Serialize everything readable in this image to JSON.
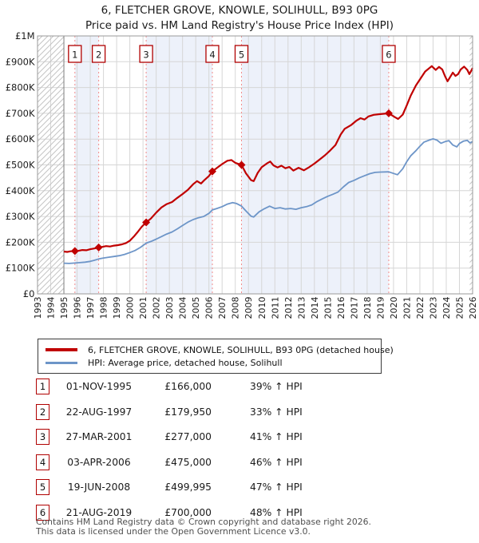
{
  "title": {
    "line1": "6, FLETCHER GROVE, KNOWLE, SOLIHULL, B93 0PG",
    "line2": "Price paid vs. HM Land Registry's House Price Index (HPI)"
  },
  "legend": [
    {
      "label": "6, FLETCHER GROVE, KNOWLE, SOLIHULL, B93 0PG (detached house)",
      "color": "#c00000"
    },
    {
      "label": "HPI: Average price, detached house, Solihull",
      "color": "#6d95c8"
    }
  ],
  "footer": {
    "line1": "Contains HM Land Registry data © Crown copyright and database right 2026.",
    "line2": "This data is licensed under the Open Government Licence v3.0."
  },
  "chart_data": {
    "type": "line",
    "x_range": [
      1993,
      2026
    ],
    "y_range": [
      0,
      1000000
    ],
    "grid": true,
    "x_ticks": [
      1993,
      1994,
      1995,
      1996,
      1997,
      1998,
      1999,
      2000,
      2001,
      2002,
      2003,
      2004,
      2005,
      2006,
      2007,
      2008,
      2009,
      2010,
      2011,
      2012,
      2013,
      2014,
      2015,
      2016,
      2017,
      2018,
      2019,
      2020,
      2021,
      2022,
      2023,
      2024,
      2025,
      2026
    ],
    "y_ticks": [
      {
        "label": "£1M",
        "value": 1000000
      },
      {
        "label": "£900K",
        "value": 900000
      },
      {
        "label": "£800K",
        "value": 800000
      },
      {
        "label": "£700K",
        "value": 700000
      },
      {
        "label": "£600K",
        "value": 600000
      },
      {
        "label": "£500K",
        "value": 500000
      },
      {
        "label": "£400K",
        "value": 400000
      },
      {
        "label": "£300K",
        "value": 300000
      },
      {
        "label": "£200K",
        "value": 200000
      },
      {
        "label": "£100K",
        "value": 100000
      },
      {
        "label": "£0",
        "value": 0
      }
    ],
    "hatch_before_year": 1995.0,
    "hatch_after_year": 2025.78,
    "shaded_sale_pairs": [
      [
        1,
        2
      ],
      [
        3,
        4
      ],
      [
        5,
        6
      ]
    ],
    "colors": {
      "price_line": "#c00000",
      "hpi_line": "#6d95c8",
      "sale_dash": "#f28b8b",
      "band": "#edf1fa",
      "grid": "#d6d6d6",
      "border": "#9a9a9a",
      "hatch": "#c4c4c4",
      "flag_border": "#b00000"
    },
    "sales": [
      {
        "num": 1,
        "date": "01-NOV-1995",
        "year": 1995.835,
        "price": 166000,
        "price_label": "£166,000",
        "vs_hpi": "39% ↑ HPI"
      },
      {
        "num": 2,
        "date": "22-AUG-1997",
        "year": 1997.64,
        "price": 179950,
        "price_label": "£179,950",
        "vs_hpi": "33% ↑ HPI"
      },
      {
        "num": 3,
        "date": "27-MAR-2001",
        "year": 2001.24,
        "price": 277000,
        "price_label": "£277,000",
        "vs_hpi": "41% ↑ HPI"
      },
      {
        "num": 4,
        "date": "03-APR-2006",
        "year": 2006.26,
        "price": 475000,
        "price_label": "£475,000",
        "vs_hpi": "46% ↑ HPI"
      },
      {
        "num": 5,
        "date": "19-JUN-2008",
        "year": 2008.47,
        "price": 499995,
        "price_label": "£499,995",
        "vs_hpi": "47% ↑ HPI"
      },
      {
        "num": 6,
        "date": "21-AUG-2019",
        "year": 2019.64,
        "price": 700000,
        "price_label": "£700,000",
        "vs_hpi": "48% ↑ HPI"
      }
    ],
    "series": [
      {
        "name": "6, FLETCHER GROVE, KNOWLE, SOLIHULL, B93 0PG (detached house)",
        "color": "#c00000",
        "points": [
          [
            1995.0,
            164000
          ],
          [
            1995.25,
            162500
          ],
          [
            1995.5,
            165000
          ],
          [
            1995.835,
            166000
          ],
          [
            1996.1,
            167000
          ],
          [
            1996.4,
            170000
          ],
          [
            1996.7,
            169000
          ],
          [
            1997.0,
            173000
          ],
          [
            1997.3,
            176000
          ],
          [
            1997.64,
            180000
          ],
          [
            1997.9,
            182000
          ],
          [
            1998.2,
            185000
          ],
          [
            1998.5,
            183500
          ],
          [
            1998.8,
            187000
          ],
          [
            1999.1,
            189000
          ],
          [
            1999.4,
            192000
          ],
          [
            1999.7,
            197000
          ],
          [
            2000.0,
            206000
          ],
          [
            2000.3,
            222000
          ],
          [
            2000.6,
            240000
          ],
          [
            2000.9,
            260000
          ],
          [
            2001.24,
            277000
          ],
          [
            2001.6,
            292000
          ],
          [
            2002.0,
            315000
          ],
          [
            2002.4,
            335000
          ],
          [
            2002.8,
            348000
          ],
          [
            2003.2,
            356000
          ],
          [
            2003.6,
            372000
          ],
          [
            2004.0,
            387000
          ],
          [
            2004.4,
            403000
          ],
          [
            2004.8,
            425000
          ],
          [
            2005.1,
            437000
          ],
          [
            2005.4,
            428000
          ],
          [
            2005.7,
            443000
          ],
          [
            2006.0,
            457000
          ],
          [
            2006.26,
            475000
          ],
          [
            2006.6,
            488000
          ],
          [
            2007.0,
            503000
          ],
          [
            2007.4,
            516000
          ],
          [
            2007.7,
            519000
          ],
          [
            2008.0,
            508000
          ],
          [
            2008.47,
            499995
          ],
          [
            2008.8,
            468000
          ],
          [
            2009.2,
            441000
          ],
          [
            2009.4,
            437000
          ],
          [
            2009.7,
            469000
          ],
          [
            2010.0,
            491000
          ],
          [
            2010.4,
            506000
          ],
          [
            2010.65,
            513000
          ],
          [
            2010.9,
            498000
          ],
          [
            2011.2,
            490000
          ],
          [
            2011.5,
            497000
          ],
          [
            2011.8,
            487000
          ],
          [
            2012.1,
            492000
          ],
          [
            2012.4,
            478000
          ],
          [
            2012.8,
            489000
          ],
          [
            2013.2,
            479000
          ],
          [
            2013.6,
            491000
          ],
          [
            2014.0,
            505000
          ],
          [
            2014.4,
            521000
          ],
          [
            2014.8,
            537000
          ],
          [
            2015.2,
            556000
          ],
          [
            2015.6,
            577000
          ],
          [
            2016.0,
            618000
          ],
          [
            2016.3,
            640000
          ],
          [
            2016.8,
            655000
          ],
          [
            2017.2,
            672000
          ],
          [
            2017.5,
            681000
          ],
          [
            2017.8,
            676000
          ],
          [
            2018.1,
            688000
          ],
          [
            2018.5,
            694000
          ],
          [
            2019.0,
            697000
          ],
          [
            2019.64,
            700000
          ],
          [
            2020.1,
            685000
          ],
          [
            2020.35,
            678000
          ],
          [
            2020.7,
            695000
          ],
          [
            2021.0,
            730000
          ],
          [
            2021.3,
            768000
          ],
          [
            2021.7,
            808000
          ],
          [
            2022.0,
            831000
          ],
          [
            2022.4,
            862000
          ],
          [
            2022.9,
            883000
          ],
          [
            2023.2,
            868000
          ],
          [
            2023.45,
            880000
          ],
          [
            2023.7,
            870000
          ],
          [
            2023.9,
            845000
          ],
          [
            2024.1,
            824000
          ],
          [
            2024.35,
            845000
          ],
          [
            2024.5,
            858000
          ],
          [
            2024.7,
            845000
          ],
          [
            2024.9,
            852000
          ],
          [
            2025.1,
            870000
          ],
          [
            2025.35,
            881000
          ],
          [
            2025.6,
            868000
          ],
          [
            2025.75,
            852000
          ],
          [
            2025.9,
            865000
          ],
          [
            2026.0,
            876000
          ]
        ]
      },
      {
        "name": "HPI: Average price, detached house, Solihull",
        "color": "#6d95c8",
        "points": [
          [
            1995.0,
            119000
          ],
          [
            1995.4,
            118000
          ],
          [
            1995.835,
            119500
          ],
          [
            1996.2,
            121000
          ],
          [
            1996.6,
            123000
          ],
          [
            1997.0,
            126000
          ],
          [
            1997.3,
            130000
          ],
          [
            1997.64,
            135300
          ],
          [
            1998.0,
            139000
          ],
          [
            1998.4,
            142000
          ],
          [
            1998.8,
            145000
          ],
          [
            1999.2,
            148000
          ],
          [
            1999.6,
            153000
          ],
          [
            2000.0,
            160000
          ],
          [
            2000.4,
            168000
          ],
          [
            2000.8,
            180000
          ],
          [
            2001.24,
            196500
          ],
          [
            2001.6,
            203000
          ],
          [
            2002.0,
            212000
          ],
          [
            2002.4,
            222000
          ],
          [
            2002.8,
            232000
          ],
          [
            2003.2,
            240000
          ],
          [
            2003.6,
            252000
          ],
          [
            2004.0,
            265000
          ],
          [
            2004.4,
            278000
          ],
          [
            2004.8,
            288000
          ],
          [
            2005.2,
            295000
          ],
          [
            2005.6,
            300000
          ],
          [
            2006.0,
            312000
          ],
          [
            2006.26,
            325300
          ],
          [
            2006.6,
            331000
          ],
          [
            2007.0,
            338000
          ],
          [
            2007.4,
            348000
          ],
          [
            2007.8,
            354000
          ],
          [
            2008.1,
            350000
          ],
          [
            2008.47,
            340100
          ],
          [
            2008.8,
            322000
          ],
          [
            2009.2,
            301000
          ],
          [
            2009.4,
            298000
          ],
          [
            2009.8,
            318000
          ],
          [
            2010.2,
            330000
          ],
          [
            2010.6,
            340000
          ],
          [
            2011.0,
            331000
          ],
          [
            2011.4,
            334000
          ],
          [
            2011.8,
            329000
          ],
          [
            2012.2,
            331000
          ],
          [
            2012.6,
            328000
          ],
          [
            2013.0,
            334000
          ],
          [
            2013.4,
            338000
          ],
          [
            2013.8,
            345000
          ],
          [
            2014.2,
            358000
          ],
          [
            2014.6,
            368000
          ],
          [
            2015.0,
            378000
          ],
          [
            2015.4,
            386000
          ],
          [
            2015.8,
            395000
          ],
          [
            2016.2,
            415000
          ],
          [
            2016.6,
            432000
          ],
          [
            2017.0,
            440000
          ],
          [
            2017.4,
            450000
          ],
          [
            2017.8,
            458000
          ],
          [
            2018.2,
            466000
          ],
          [
            2018.6,
            471000
          ],
          [
            2019.0,
            472000
          ],
          [
            2019.64,
            472970
          ],
          [
            2020.0,
            467000
          ],
          [
            2020.3,
            462000
          ],
          [
            2020.7,
            485000
          ],
          [
            2021.0,
            512000
          ],
          [
            2021.3,
            535000
          ],
          [
            2021.7,
            555000
          ],
          [
            2022.0,
            572000
          ],
          [
            2022.3,
            588000
          ],
          [
            2022.7,
            596000
          ],
          [
            2023.0,
            601000
          ],
          [
            2023.3,
            596000
          ],
          [
            2023.6,
            584000
          ],
          [
            2023.9,
            590000
          ],
          [
            2024.2,
            594000
          ],
          [
            2024.5,
            577000
          ],
          [
            2024.8,
            570000
          ],
          [
            2025.0,
            583000
          ],
          [
            2025.3,
            592000
          ],
          [
            2025.6,
            595000
          ],
          [
            2025.8,
            585000
          ],
          [
            2026.0,
            591000
          ]
        ]
      }
    ]
  }
}
